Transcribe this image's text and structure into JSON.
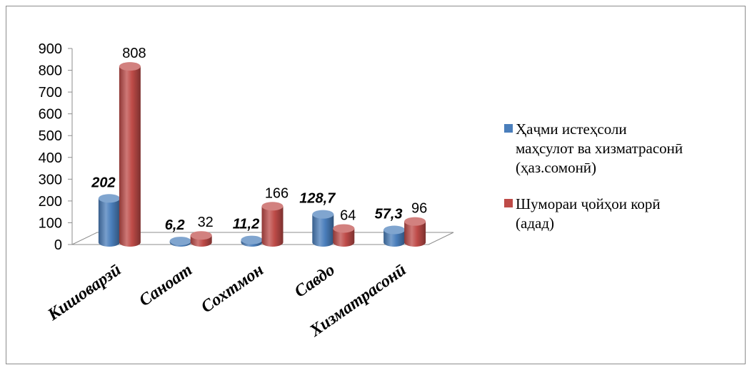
{
  "chart_data": {
    "type": "bar",
    "categories": [
      "Кишоварзӣ",
      "Саноат",
      "Сохтмон",
      "Савдо",
      "Хизматрасонӣ"
    ],
    "series": [
      {
        "name": "Ҳаҷми истеҳсоли маҳсулот ва хизматрасонӣ (ҳаз.сомонӣ)",
        "legend_lines": [
          "Ҳаҷми истеҳсоли",
          "маҳсулот ва хизматрасонӣ",
          "(ҳаз.сомонӣ)"
        ],
        "values": [
          202,
          6.2,
          11.2,
          128.7,
          57.3
        ],
        "labels": [
          "202",
          "6,2",
          "11,2",
          "128,7",
          "57,3"
        ],
        "color": "#4a7ebb"
      },
      {
        "name": "Шумораи ҷойҳои корӣ (адад)",
        "legend_lines": [
          "Шумораи ҷойҳои корӣ",
          "(адад)"
        ],
        "values": [
          808,
          32,
          166,
          64,
          96
        ],
        "labels": [
          "808",
          "32",
          "166",
          "64",
          "96"
        ],
        "color": "#be4b48"
      }
    ],
    "yticks": [
      "0",
      "100",
      "200",
      "300",
      "400",
      "500",
      "600",
      "700",
      "800",
      "900"
    ],
    "ylim": [
      0,
      900
    ],
    "grid": false,
    "legend": "right"
  }
}
